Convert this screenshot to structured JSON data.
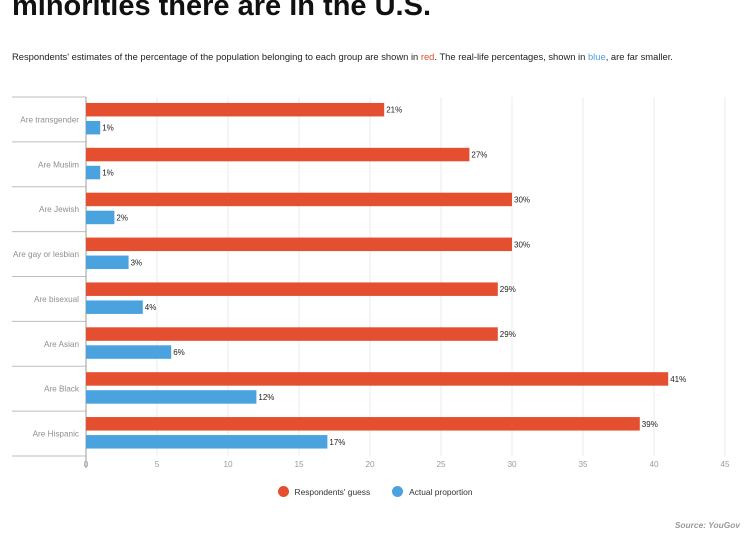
{
  "title": "minorities there are in the U.S.",
  "subtitle": {
    "before": "Respondents' estimates of the percentage of the population belonging to each group are shown in ",
    "red_word": "red",
    "middle": ". The real-life percentages, shown in ",
    "blue_word": "blue",
    "after": ", are far smaller."
  },
  "source": "Source: YouGov",
  "colors": {
    "guess": "#e34f2f",
    "actual": "#4aa3df"
  },
  "chart_data": {
    "type": "bar",
    "orientation": "horizontal",
    "categories": [
      "Are transgender",
      "Are Muslim",
      "Are Jewish",
      "Are gay or lesbian",
      "Are bisexual",
      "Are Asian",
      "Are Black",
      "Are Hispanic"
    ],
    "series": [
      {
        "name": "Respondents' guess",
        "values": [
          21,
          27,
          30,
          30,
          29,
          29,
          41,
          39
        ],
        "labels": [
          "21%",
          "27%",
          "30%",
          "30%",
          "29%",
          "29%",
          "41%",
          "39%"
        ]
      },
      {
        "name": "Actual proportion",
        "values": [
          1,
          1,
          2,
          3,
          4,
          6,
          12,
          17
        ],
        "labels": [
          "1%",
          "1%",
          "2%",
          "3%",
          "4%",
          "6%",
          "12%",
          "17%"
        ]
      }
    ],
    "xlim": [
      0,
      45
    ],
    "xticks": [
      0,
      5,
      10,
      15,
      20,
      25,
      30,
      35,
      40,
      45
    ],
    "grid": true,
    "legend_position": "bottom-center"
  }
}
